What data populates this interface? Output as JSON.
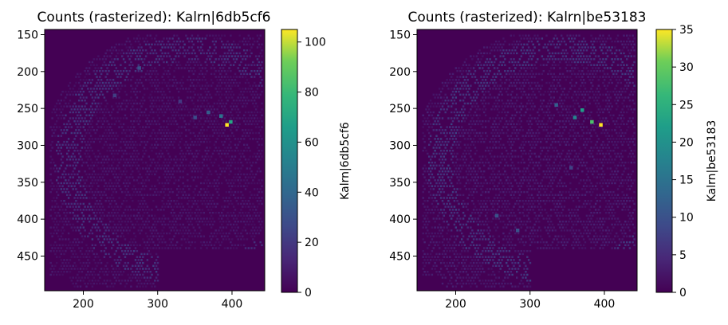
{
  "chart_data": [
    {
      "type": "heatmap",
      "title": "Counts (rasterized): Kalrn|6db5cf6",
      "xlabel": "",
      "ylabel": "",
      "xlim": [
        148,
        444
      ],
      "ylim": [
        497,
        143
      ],
      "y_inverted": true,
      "xticks": [
        200,
        300,
        400
      ],
      "yticks": [
        150,
        200,
        250,
        300,
        350,
        400,
        450
      ],
      "colormap": "viridis",
      "colorbar": {
        "label": "Kalrn|6db5cf6",
        "min": 0,
        "max": 105,
        "ticks": [
          0,
          20,
          40,
          60,
          80,
          100
        ]
      },
      "grid": false,
      "hotspots": [
        {
          "x": 393,
          "y": 272,
          "value": 105
        },
        {
          "x": 398,
          "y": 268,
          "value": 70
        },
        {
          "x": 385,
          "y": 260,
          "value": 45
        },
        {
          "x": 368,
          "y": 255,
          "value": 35
        },
        {
          "x": 275,
          "y": 195,
          "value": 30
        },
        {
          "x": 350,
          "y": 262,
          "value": 28
        },
        {
          "x": 242,
          "y": 232,
          "value": 22
        },
        {
          "x": 330,
          "y": 240,
          "value": 20
        }
      ]
    },
    {
      "type": "heatmap",
      "title": "Counts (rasterized): Kalrn|be53183",
      "xlabel": "",
      "ylabel": "",
      "xlim": [
        148,
        444
      ],
      "ylim": [
        497,
        143
      ],
      "y_inverted": true,
      "xticks": [
        200,
        300,
        400
      ],
      "yticks": [
        150,
        200,
        250,
        300,
        350,
        400,
        450
      ],
      "colormap": "viridis",
      "colorbar": {
        "label": "Kalrn|be53183",
        "min": 0,
        "max": 35,
        "ticks": [
          0,
          5,
          10,
          15,
          20,
          25,
          30,
          35
        ]
      },
      "grid": false,
      "hotspots": [
        {
          "x": 395,
          "y": 272,
          "value": 35
        },
        {
          "x": 383,
          "y": 268,
          "value": 28
        },
        {
          "x": 370,
          "y": 252,
          "value": 22
        },
        {
          "x": 360,
          "y": 262,
          "value": 18
        },
        {
          "x": 335,
          "y": 245,
          "value": 12
        },
        {
          "x": 255,
          "y": 395,
          "value": 10
        },
        {
          "x": 283,
          "y": 415,
          "value": 10
        },
        {
          "x": 355,
          "y": 330,
          "value": 8
        }
      ]
    }
  ]
}
